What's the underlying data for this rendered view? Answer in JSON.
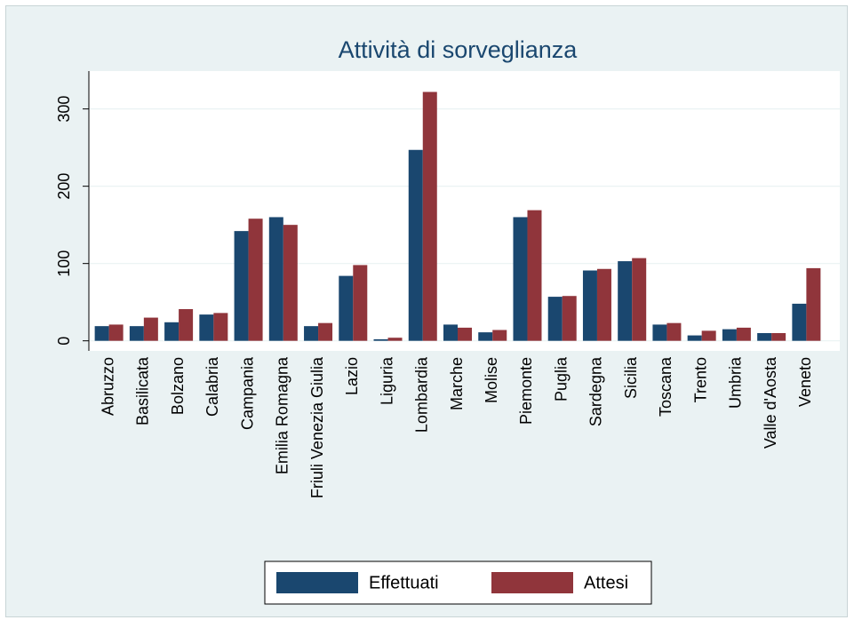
{
  "chart_data": {
    "type": "bar",
    "title": "Attività di sorveglianza",
    "categories": [
      "Abruzzo",
      "Basilicata",
      "Bolzano",
      "Calabria",
      "Campania",
      "Emilia Romagna",
      "Friuli Venezia Giulia",
      "Lazio",
      "Liguria",
      "Lombardia",
      "Marche",
      "Molise",
      "Piemonte",
      "Puglia",
      "Sardegna",
      "Sicilia",
      "Toscana",
      "Trento",
      "Umbria",
      "Valle d'Aosta",
      "Veneto"
    ],
    "series": [
      {
        "name": "Effettuati",
        "color": "#1a476f",
        "values": [
          19,
          19,
          24,
          34,
          142,
          160,
          19,
          84,
          2,
          247,
          21,
          11,
          160,
          57,
          91,
          103,
          21,
          7,
          15,
          10,
          48
        ]
      },
      {
        "name": "Attesi",
        "color": "#90353b",
        "values": [
          21,
          30,
          41,
          36,
          158,
          150,
          23,
          98,
          4,
          322,
          17,
          14,
          169,
          58,
          93,
          107,
          23,
          13,
          17,
          10,
          94
        ]
      }
    ],
    "ylim": [
      -13,
      349
    ],
    "yticks": [
      0,
      100,
      200,
      300
    ],
    "grid": true,
    "legend": "bottom"
  }
}
